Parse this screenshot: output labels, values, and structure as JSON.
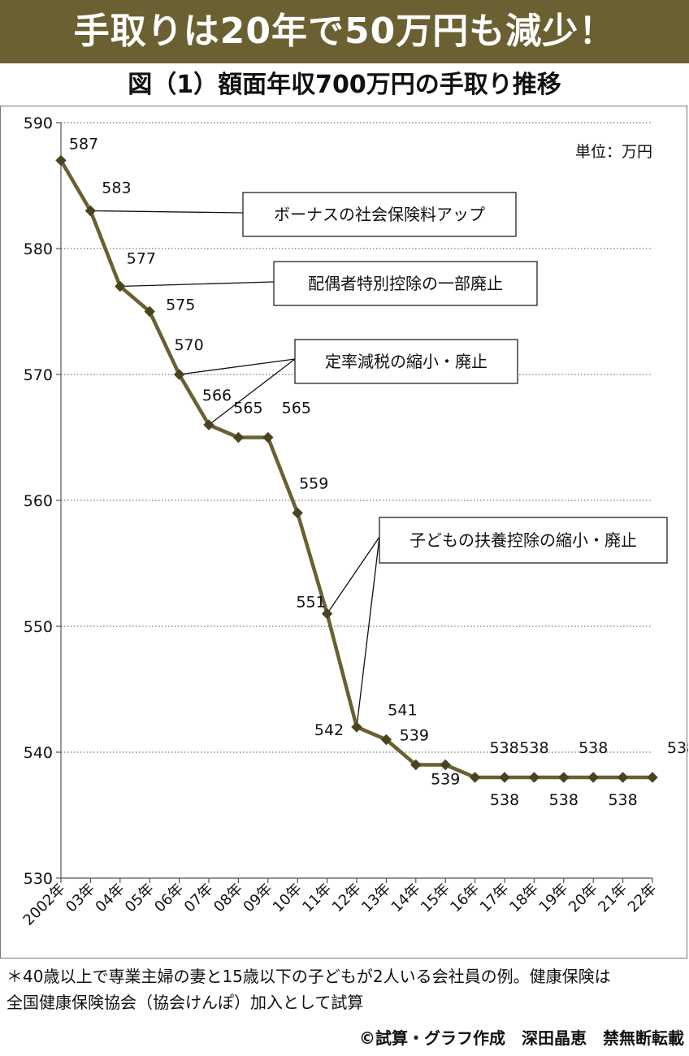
{
  "banner": {
    "text": "手取りは20年で50万円も減少！"
  },
  "chart_data": {
    "type": "line",
    "title": "図（1）額面年収700万円の手取り推移",
    "unit_label": "単位：万円",
    "x": [
      "2002年",
      "03年",
      "04年",
      "05年",
      "06年",
      "07年",
      "08年",
      "09年",
      "10年",
      "11年",
      "12年",
      "13年",
      "14年",
      "15年",
      "16年",
      "17年",
      "18年",
      "19年",
      "20年",
      "21年",
      "22年"
    ],
    "series": [
      {
        "values": [
          587,
          583,
          577,
          575,
          570,
          566,
          565,
          565,
          559,
          551,
          542,
          541,
          539,
          539,
          538,
          538,
          538,
          538,
          538,
          538,
          538
        ],
        "color": "#6b6031"
      }
    ],
    "ylim": [
      530,
      590
    ],
    "yticks": [
      530,
      540,
      550,
      560,
      570,
      580,
      590
    ],
    "grid": "horizontal-dotted",
    "annotations": [
      {
        "text": "ボーナスの社会保険料アップ",
        "points": [
          1
        ]
      },
      {
        "text": "配偶者特別控除の一部廃止",
        "points": [
          2
        ]
      },
      {
        "text": "定率減税の縮小・廃止",
        "points": [
          4,
          5
        ]
      },
      {
        "text": "子どもの扶養控除の縮小・廃止",
        "points": [
          9,
          10
        ]
      }
    ]
  },
  "footnote": {
    "line1": "＊40歳以上で専業主婦の妻と15歳以下の子どもが2人いる会社員の例。健康保険は",
    "line2": "全国健康保険協会（協会けんぽ）加入として試算"
  },
  "credit": "©試算・グラフ作成　深田晶恵　禁無断転載"
}
